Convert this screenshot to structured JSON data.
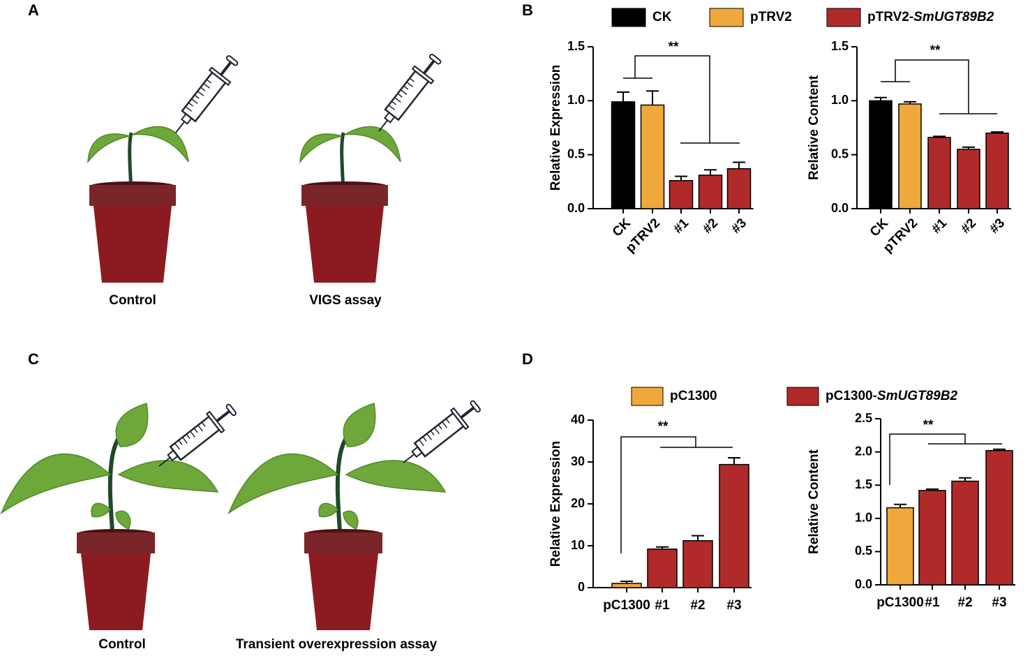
{
  "panel_labels": [
    "A",
    "B",
    "C",
    "D"
  ],
  "illustrations": {
    "top": [
      "Control",
      "VIGS assay"
    ],
    "bottom": [
      "Control",
      "Transient overexpression assay"
    ]
  },
  "legends": [
    {
      "entries": [
        {
          "name": "CK",
          "color": "#000000"
        },
        {
          "name": "pTRV2",
          "color": "#f0a83c"
        },
        {
          "name": "pTRV2-",
          "name_italic": "SmUGT89B2",
          "color": "#b02a2a"
        }
      ]
    },
    {
      "entries": [
        {
          "name": "pC1300",
          "color": "#f0a83c"
        },
        {
          "name": "pC1300-",
          "name_italic": "SmUGT89B2",
          "color": "#b02a2a"
        }
      ]
    }
  ],
  "chart_data": [
    {
      "type": "bar",
      "y_label": "Relative Expression",
      "categories": [
        "CK",
        "pTRV2",
        "#1",
        "#2",
        "#3"
      ],
      "values": [
        0.99,
        0.96,
        0.26,
        0.31,
        0.37
      ],
      "errors": [
        0.09,
        0.13,
        0.04,
        0.05,
        0.06
      ],
      "colors": [
        "#000000",
        "#f0a83c",
        "#b02a2a",
        "#b02a2a",
        "#b02a2a"
      ],
      "ylim": [
        0,
        1.5
      ],
      "yticks": [
        {
          "value": 0,
          "label": "0.0"
        },
        0.5,
        {
          "value": 1,
          "label": "1.0"
        },
        1.5
      ],
      "annotation": "**"
    },
    {
      "type": "bar",
      "y_label": "Relative Content",
      "categories": [
        "CK",
        "pTRV2",
        "#1",
        "#2",
        "#3"
      ],
      "values": [
        1.0,
        0.97,
        0.66,
        0.55,
        0.7
      ],
      "errors": [
        0.03,
        0.02,
        0.01,
        0.02,
        0.01
      ],
      "colors": [
        "#000000",
        "#f0a83c",
        "#b02a2a",
        "#b02a2a",
        "#b02a2a"
      ],
      "ylim": [
        0,
        1.5
      ],
      "yticks": [
        {
          "value": 0,
          "label": "0.0"
        },
        0.5,
        {
          "value": 1,
          "label": "1.0"
        },
        1.5
      ],
      "annotation": "**"
    },
    {
      "type": "bar",
      "y_label": "Relative Expression",
      "categories": [
        "pC1300",
        "#1",
        "#2",
        "#3"
      ],
      "values": [
        1.0,
        9.2,
        11.2,
        29.4
      ],
      "errors": [
        0.5,
        0.5,
        1.2,
        1.6
      ],
      "colors": [
        "#f0a83c",
        "#b02a2a",
        "#b02a2a",
        "#b02a2a"
      ],
      "ylim": [
        0,
        40
      ],
      "yticks": [
        0,
        10,
        20,
        30,
        40
      ],
      "annotation": "**"
    },
    {
      "type": "bar",
      "y_label": "Relative Content",
      "categories": [
        "pC1300",
        "#1",
        "#2",
        "#3"
      ],
      "values": [
        1.16,
        1.42,
        1.56,
        2.02
      ],
      "errors": [
        0.05,
        0.02,
        0.05,
        0.02
      ],
      "colors": [
        "#f0a83c",
        "#b02a2a",
        "#b02a2a",
        "#b02a2a"
      ],
      "ylim": [
        0,
        2.5
      ],
      "yticks": [
        {
          "value": 0,
          "label": "0.0"
        },
        0.5,
        {
          "value": 1,
          "label": "1.0"
        },
        1.5,
        {
          "value": 2,
          "label": "2.0"
        },
        2.5
      ],
      "annotation": "**"
    }
  ]
}
